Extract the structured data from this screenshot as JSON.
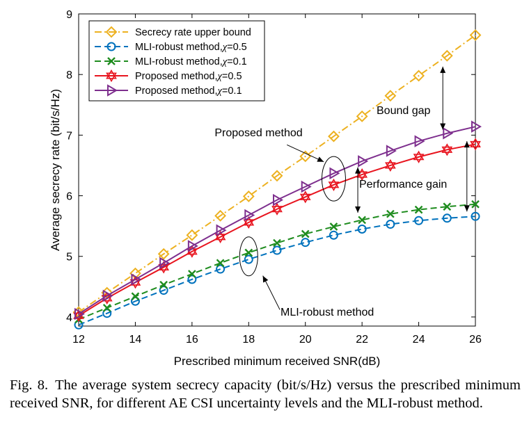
{
  "chart_data": {
    "type": "line",
    "xlabel": "Prescribed minimum received SNR(dB)",
    "ylabel": "Average secrecy rate (bit/s/Hz)",
    "xlim": [
      12,
      26
    ],
    "ylim": [
      3.85,
      9
    ],
    "xticks": [
      "12",
      "14",
      "16",
      "18",
      "20",
      "22",
      "24",
      "26"
    ],
    "yticks": [
      "4",
      "5",
      "6",
      "7",
      "8",
      "9"
    ],
    "grid": false,
    "legend_placement": "top-left",
    "x": [
      12,
      13,
      14,
      15,
      16,
      17,
      18,
      19,
      20,
      21,
      22,
      23,
      24,
      25,
      26
    ],
    "series": [
      {
        "name": "Secrecy rate upper bound",
        "color": "#EDB120",
        "marker": "diamond",
        "dash": "dashdot",
        "values": [
          4.08,
          4.4,
          4.72,
          5.04,
          5.35,
          5.67,
          5.99,
          6.33,
          6.65,
          6.98,
          7.31,
          7.65,
          7.98,
          8.31,
          8.65
        ]
      },
      {
        "name": "MLI-robust method,",
        "chi": "=0.5",
        "color": "#0072BD",
        "marker": "circle",
        "dash": "dashed",
        "values": [
          3.87,
          4.06,
          4.26,
          4.44,
          4.62,
          4.79,
          4.95,
          5.1,
          5.23,
          5.35,
          5.45,
          5.53,
          5.59,
          5.63,
          5.66
        ]
      },
      {
        "name": "MLI-robust method,",
        "chi": "=0.1",
        "color": "#1E8C1E",
        "marker": "x",
        "dash": "dashed",
        "values": [
          3.96,
          4.15,
          4.34,
          4.53,
          4.71,
          4.89,
          5.06,
          5.22,
          5.37,
          5.49,
          5.6,
          5.7,
          5.77,
          5.82,
          5.86
        ]
      },
      {
        "name": "Proposed method,",
        "chi": "=0.5",
        "color": "#E8141E",
        "marker": "hexagram",
        "dash": "solid",
        "values": [
          4.02,
          4.31,
          4.57,
          4.82,
          5.08,
          5.32,
          5.56,
          5.78,
          5.98,
          6.18,
          6.35,
          6.5,
          6.64,
          6.76,
          6.85
        ]
      },
      {
        "name": "Proposed method,",
        "chi": "=0.1",
        "color": "#7E2F8E",
        "marker": "triangle-right",
        "dash": "solid",
        "values": [
          4.05,
          4.35,
          4.62,
          4.89,
          5.17,
          5.43,
          5.68,
          5.93,
          6.15,
          6.37,
          6.57,
          6.74,
          6.9,
          7.03,
          7.14
        ]
      }
    ],
    "chi_symbol": "χ",
    "annotations": [
      {
        "text": "Proposed method",
        "anchor": [
          19.9,
          6.98
        ]
      },
      {
        "text": "MLI-robust method",
        "anchor": [
          19.2,
          4.02
        ]
      },
      {
        "text": "Performance gain",
        "anchor": [
          22.9,
          6.13
        ]
      },
      {
        "text": "Bound gap",
        "anchor": [
          24.3,
          7.35
        ]
      }
    ]
  },
  "caption": {
    "label": "Fig. 8.",
    "text": "The average system secrecy capacity (bit/s/Hz) versus the prescribed minimum received SNR, for different AE CSI uncertainty levels and the MLI-robust method."
  }
}
